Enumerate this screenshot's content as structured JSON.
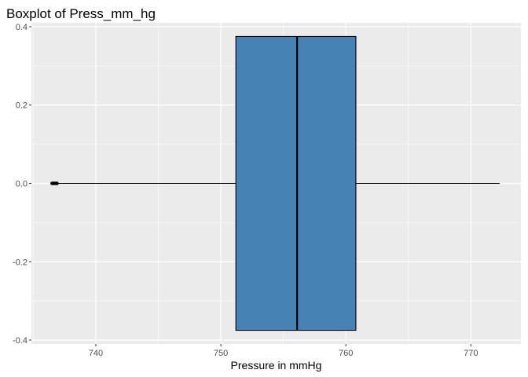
{
  "chart_data": {
    "type": "boxplot",
    "title": "Boxplot of Press_mm_hg",
    "xlabel": "Pressure in mmHg",
    "ylabel": "",
    "orientation": "horizontal",
    "xlim": [
      734.85,
      774.0
    ],
    "ylim": [
      -0.41,
      0.41
    ],
    "x_ticks": [
      740,
      750,
      760,
      770
    ],
    "x_tick_labels": [
      "740",
      "750",
      "760",
      "770"
    ],
    "y_ticks": [
      -0.4,
      -0.2,
      0.0,
      0.2,
      0.4
    ],
    "y_tick_labels": [
      "-0.4",
      "-0.2",
      "0.0",
      "0.2",
      "0.4"
    ],
    "grid": true,
    "legend": "none",
    "box": {
      "whisker_low": 736.93,
      "q1": 751.2,
      "median": 756.1,
      "q3": 760.8,
      "whisker_high": 772.3,
      "y_center": 0.0,
      "y_half_height": 0.375,
      "outliers": [
        736.5,
        736.6,
        736.7,
        736.8,
        736.9
      ]
    },
    "colors": {
      "box_fill": "#4682B4",
      "panel_bg": "#EBEBEB",
      "grid": "#FFFFFF",
      "line": "#000000"
    }
  }
}
